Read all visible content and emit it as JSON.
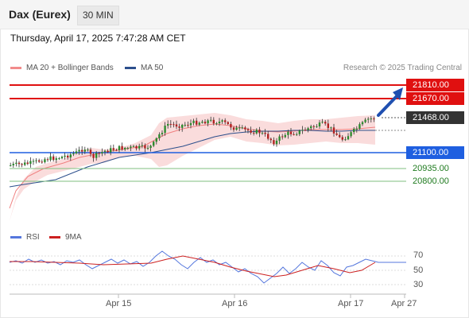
{
  "header": {
    "title": "Dax (Eurex)",
    "timeframe": "30 MIN"
  },
  "datetime": "Thursday, April 17, 2025 7:47:28 AM CET",
  "legend": {
    "bollinger": "MA 20 + Bollinger Bands",
    "ma50": "MA 50",
    "credit": "Research © 2025 Trading Central",
    "rsi": "RSI",
    "rsi_ma": "9MA"
  },
  "colors": {
    "resistance": "#e01010",
    "support": "#1f5fe0",
    "target": "#2e8b2e",
    "bands": "#f7c9c9",
    "ma50": "#2c4f8c"
  },
  "levels": {
    "r2": "21810.00",
    "r1": "21670.00",
    "last": "21468.00",
    "s1": "21100.00",
    "s2": "20935.00",
    "s3": "20800.00"
  },
  "rsi_axis": [
    "70",
    "50",
    "30"
  ],
  "x_axis": [
    "Apr 15",
    "Apr 16",
    "Apr 17",
    "Apr 27"
  ]
}
